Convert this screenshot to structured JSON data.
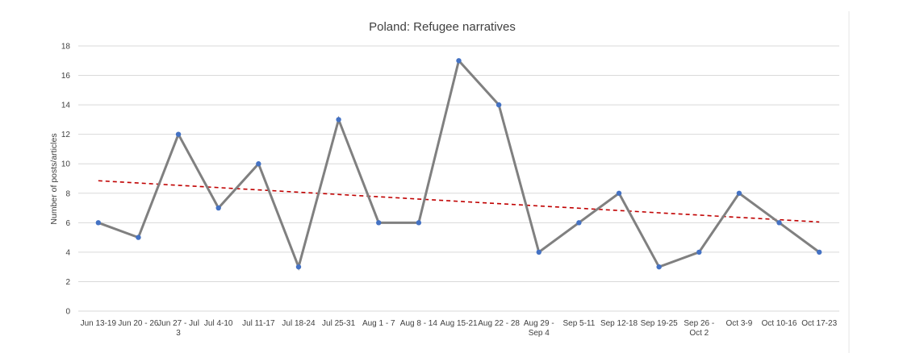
{
  "chart_data": {
    "type": "line",
    "title": "Poland: Refugee narratives",
    "xlabel": "",
    "ylabel": "Number of posts/articles",
    "ylim": [
      0,
      18
    ],
    "yticks": [
      0,
      2,
      4,
      6,
      8,
      10,
      12,
      14,
      16,
      18
    ],
    "grid": true,
    "legend": "none",
    "categories": [
      [
        "Jun 13-19"
      ],
      [
        "Jun 20 - 26"
      ],
      [
        "Jun 27 - Jul",
        "3"
      ],
      [
        "Jul 4-10"
      ],
      [
        "Jul 11-17"
      ],
      [
        "Jul 18-24"
      ],
      [
        "Jul 25-31"
      ],
      [
        "Aug 1 - 7"
      ],
      [
        "Aug 8 - 14"
      ],
      [
        "Aug 15-21"
      ],
      [
        "Aug 22 - 28"
      ],
      [
        "Aug 29 -",
        "Sep 4"
      ],
      [
        "Sep 5-11"
      ],
      [
        "Sep 12-18"
      ],
      [
        "Sep 19-25"
      ],
      [
        "Sep 26 -",
        "Oct 2"
      ],
      [
        "Oct 3-9"
      ],
      [
        "Oct 10-16"
      ],
      [
        "Oct 17-23"
      ]
    ],
    "series": [
      {
        "values": [
          6,
          5,
          12,
          7,
          10,
          3,
          13,
          6,
          6,
          17,
          14,
          4,
          6,
          8,
          3,
          4,
          8,
          6,
          4
        ],
        "line_color": "#808080",
        "marker_color": "#4472c4"
      }
    ],
    "trendline": {
      "type": "linear",
      "start": 8.85,
      "end": 6.05,
      "color": "#c00000",
      "style": "dashed"
    }
  }
}
